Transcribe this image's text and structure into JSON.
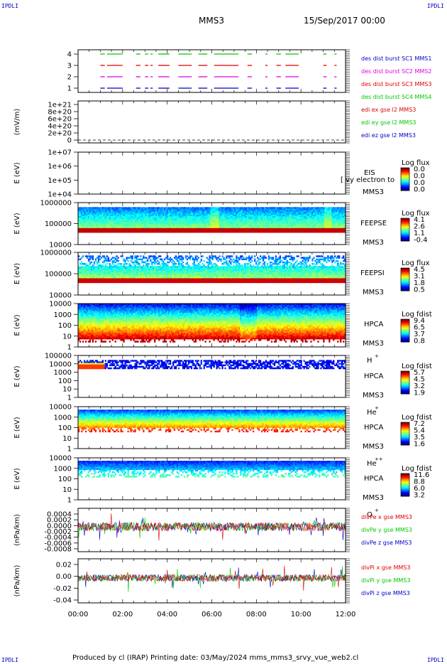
{
  "corners": {
    "top_left": "IPDLI",
    "top_right": "IPDLI",
    "bottom_left": "IPDLI",
    "bottom_right": "IPDLI"
  },
  "header": {
    "mission": "MMS3",
    "date": "15/Sep/2017 00:00"
  },
  "footer": "Produced by cl (IRAP)    Printing date: 03/May/2024    mms_mms3_srvy_vue_web2.cl",
  "time_axis": {
    "ticks": [
      "00:00",
      "02:00",
      "04:00",
      "06:00",
      "08:00",
      "10:00",
      "12:00"
    ]
  },
  "chart_data": [
    {
      "type": "scatter",
      "panel": "burst",
      "ytick_labels": [
        "4",
        "3",
        "2",
        "1"
      ],
      "series": [
        {
          "name": "des dist burst SC1 MMS1",
          "color": "#0000c8",
          "y": 1,
          "intervals_h": [
            [
              1.0,
              1.2
            ],
            [
              1.3,
              2.0
            ],
            [
              2.6,
              2.8
            ],
            [
              3.0,
              3.15
            ],
            [
              3.25,
              3.35
            ],
            [
              3.6,
              4.1
            ],
            [
              4.5,
              5.1
            ],
            [
              5.4,
              5.8
            ],
            [
              6.1,
              7.2
            ],
            [
              7.6,
              7.8
            ],
            [
              8.4,
              8.5
            ],
            [
              8.9,
              9.1
            ],
            [
              9.3,
              9.9
            ],
            [
              11.0,
              11.15
            ],
            [
              11.5,
              11.6
            ]
          ]
        },
        {
          "name": "des dist burst SC2 MMS2",
          "color": "#e000e0",
          "y": 2,
          "intervals_h": [
            [
              1.0,
              1.2
            ],
            [
              1.3,
              2.0
            ],
            [
              2.6,
              2.8
            ],
            [
              3.0,
              3.15
            ],
            [
              3.25,
              3.35
            ],
            [
              3.6,
              4.1
            ],
            [
              4.5,
              5.1
            ],
            [
              5.4,
              5.8
            ],
            [
              6.1,
              7.2
            ],
            [
              7.6,
              7.8
            ],
            [
              8.4,
              8.5
            ],
            [
              8.9,
              9.1
            ],
            [
              9.3,
              9.9
            ],
            [
              11.0,
              11.15
            ],
            [
              11.5,
              11.6
            ]
          ]
        },
        {
          "name": "des dist burst SC3 MMS3",
          "color": "#e00000",
          "y": 3,
          "intervals_h": [
            [
              1.0,
              1.2
            ],
            [
              1.3,
              2.0
            ],
            [
              2.6,
              2.8
            ],
            [
              3.0,
              3.15
            ],
            [
              3.25,
              3.35
            ],
            [
              3.6,
              4.1
            ],
            [
              4.5,
              5.1
            ],
            [
              5.4,
              5.8
            ],
            [
              6.1,
              7.2
            ],
            [
              7.6,
              7.8
            ],
            [
              8.4,
              8.5
            ],
            [
              8.9,
              9.1
            ],
            [
              9.3,
              9.9
            ],
            [
              11.0,
              11.15
            ],
            [
              11.5,
              11.6
            ]
          ]
        },
        {
          "name": "des dist burst SC4 MMS4",
          "color": "#00c800",
          "y": 4,
          "intervals_h": [
            [
              1.0,
              1.2
            ],
            [
              1.3,
              2.0
            ],
            [
              2.6,
              2.8
            ],
            [
              3.0,
              3.15
            ],
            [
              3.25,
              3.35
            ],
            [
              3.6,
              4.1
            ],
            [
              4.5,
              5.1
            ],
            [
              5.4,
              5.8
            ],
            [
              6.1,
              7.2
            ],
            [
              7.6,
              7.8
            ],
            [
              8.4,
              8.5
            ],
            [
              8.9,
              9.1
            ],
            [
              9.3,
              9.9
            ],
            [
              11.0,
              11.15
            ],
            [
              11.5,
              11.6
            ]
          ]
        }
      ]
    },
    {
      "type": "line",
      "panel": "edi",
      "ylabel": "(mV/m)",
      "ytick_labels": [
        "1e+21",
        "8e+20",
        "6e+20",
        "4e+20",
        "2e+20",
        "0"
      ],
      "series": [
        {
          "name": "edi ex gse l2 MMS3",
          "color": "#e00000"
        },
        {
          "name": "edi ey gse l2 MMS3",
          "color": "#00c800"
        },
        {
          "name": "edi ez gse l2 MMS3",
          "color": "#0000c8"
        }
      ]
    },
    {
      "type": "heatmap",
      "panel": "eis",
      "ylabel": "E (eV)",
      "ytick_labels": [
        "1e+07",
        "1e+06",
        "1e+05",
        "1e+04"
      ],
      "labels": [
        "EIS",
        "MMS3"
      ],
      "overlay_text": "[ vy electron to",
      "colorbar": {
        "title": "Log flux",
        "ticks": [
          "0.0",
          "0.0",
          "0.0",
          "0.0"
        ]
      }
    },
    {
      "type": "heatmap",
      "panel": "feepse",
      "ylabel": "E (eV)",
      "ytick_labels": [
        "1000000",
        "100000",
        "10000"
      ],
      "labels": [
        "FEEPSE",
        "MMS3"
      ],
      "colorbar": {
        "title": "Log flux",
        "ticks": [
          "4.1",
          "2.6",
          "1.1",
          "-0.4"
        ]
      }
    },
    {
      "type": "heatmap",
      "panel": "feepsi",
      "ylabel": "E (eV)",
      "ytick_labels": [
        "1000000",
        "100000",
        "10000"
      ],
      "labels": [
        "FEEPSI",
        "MMS3"
      ],
      "colorbar": {
        "title": "Log flux",
        "ticks": [
          "4.5",
          "3.1",
          "1.8",
          "0.5"
        ]
      }
    },
    {
      "type": "heatmap",
      "panel": "hpca_h",
      "ylabel": "E (eV)",
      "ytick_labels": [
        "10000",
        "1000",
        "100",
        "10",
        "1"
      ],
      "labels": [
        "HPCA",
        "MMS3"
      ],
      "species": "H",
      "charge": "+",
      "colorbar": {
        "title": "Log fdist",
        "ticks": [
          "9.4",
          "6.5",
          "3.7",
          "0.8"
        ]
      }
    },
    {
      "type": "heatmap",
      "panel": "hpca_he",
      "ylabel": "E (eV)",
      "ytick_labels": [
        "100000",
        "10000",
        "1000",
        "100",
        "10",
        "1"
      ],
      "labels": [
        "HPCA",
        "MMS3"
      ],
      "species": "He",
      "charge": "+",
      "colorbar": {
        "title": "Log fdist",
        "ticks": [
          "5.7",
          "4.5",
          "3.2",
          "1.9"
        ]
      }
    },
    {
      "type": "heatmap",
      "panel": "hpca_hepp",
      "ylabel": "E (eV)",
      "ytick_labels": [
        "10000",
        "1000",
        "100",
        "10",
        "1"
      ],
      "labels": [
        "HPCA",
        "MMS3"
      ],
      "species": "He",
      "charge": "++",
      "colorbar": {
        "title": "Log fdist",
        "ticks": [
          "7.2",
          "5.4",
          "3.5",
          "1.6"
        ]
      }
    },
    {
      "type": "heatmap",
      "panel": "hpca_o",
      "ylabel": "E (eV)",
      "ytick_labels": [
        "10000",
        "1000",
        "100",
        "10",
        "1"
      ],
      "labels": [
        "HPCA",
        "MMS3"
      ],
      "species": "O",
      "charge": "+",
      "colorbar": {
        "title": "Log fdist",
        "ticks": [
          "11.6",
          "8.8",
          "6.0",
          "3.2"
        ]
      }
    },
    {
      "type": "line",
      "panel": "divpe",
      "ylabel": "(nPa/km)",
      "ytick_labels": [
        "0.0004",
        "0.0002",
        "0.0000",
        "-0.0002",
        "-0.0004",
        "-0.0006",
        "-0.0008"
      ],
      "series": [
        {
          "name": "divPe x gse MMS3",
          "color": "#e00000"
        },
        {
          "name": "divPe y gse MMS3",
          "color": "#00c800"
        },
        {
          "name": "divPe z gse MMS3",
          "color": "#0000c8"
        }
      ]
    },
    {
      "type": "line",
      "panel": "divpi",
      "ylabel": "(nPa/km)",
      "ytick_labels": [
        "0.02",
        "0.00",
        "-0.02",
        "-0.04"
      ],
      "series": [
        {
          "name": "divPi x gse MMS3",
          "color": "#e00000"
        },
        {
          "name": "divPi y gse MMS3",
          "color": "#00c800"
        },
        {
          "name": "divPi z gse MMS3",
          "color": "#0000c8"
        }
      ]
    }
  ]
}
